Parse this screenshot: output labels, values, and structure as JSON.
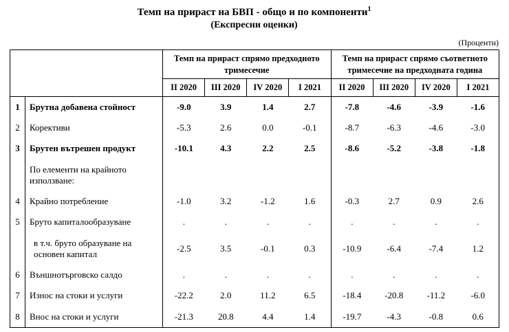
{
  "page": {
    "title": "Темп на прираст на БВП - общо и по компоненти",
    "title_superscript": "1",
    "subtitle": "(Експресни оценки)",
    "units_note": "(Проценти)"
  },
  "table": {
    "group_headers": [
      "Темп на прираст спрямо предходното тримесечие",
      "Темп на прираст спрямо съответното тримесечие на предходната година"
    ],
    "quarter_headers": [
      "II 2020",
      "III 2020",
      "IV 2020",
      "I 2021"
    ],
    "rows": [
      {
        "num": "1",
        "label": "Брутна добавена стойност",
        "bold": true,
        "indent": false,
        "values": [
          "-9.0",
          "3.9",
          "1.4",
          "2.7",
          "-7.8",
          "-4.6",
          "-3.9",
          "-1.6"
        ]
      },
      {
        "num": "2",
        "label": "Корективи",
        "bold": false,
        "indent": false,
        "values": [
          "-5.3",
          "2.6",
          "0.0",
          "-0.1",
          "-8.7",
          "-6.3",
          "-4.6",
          "-3.0"
        ]
      },
      {
        "num": "3",
        "label": "Брутен вътрешен продукт",
        "bold": true,
        "indent": false,
        "values": [
          "-10.1",
          "4.3",
          "2.2",
          "2.5",
          "-8.6",
          "-5.2",
          "-3.8",
          "-1.8"
        ]
      },
      {
        "num": "",
        "label": "По елементи на крайното използване:",
        "bold": false,
        "indent": false,
        "values": [
          "",
          "",
          "",
          "",
          "",
          "",
          "",
          ""
        ]
      },
      {
        "num": "4",
        "label": "Крайно потребление",
        "bold": false,
        "indent": false,
        "values": [
          "-1.0",
          "3.2",
          "-1.2",
          "1.6",
          "-0.3",
          "2.7",
          "0.9",
          "2.6"
        ]
      },
      {
        "num": "5",
        "label": "Бруто капиталообразуване",
        "bold": false,
        "indent": false,
        "values": [
          ".",
          ".",
          ".",
          ".",
          ".",
          ".",
          ".",
          "."
        ]
      },
      {
        "num": "",
        "label": "в т.ч. бруто образуване на основен капитал",
        "bold": false,
        "indent": true,
        "values": [
          "-2.5",
          "3.5",
          "-0.1",
          "0.3",
          "-10.9",
          "-6.4",
          "-7.4",
          "1.2"
        ]
      },
      {
        "num": "6",
        "label": "Външнотърговско салдо",
        "bold": false,
        "indent": false,
        "values": [
          ".",
          ".",
          ".",
          ".",
          ".",
          ".",
          ".",
          "."
        ]
      },
      {
        "num": "7",
        "label": "Износ на стоки и услуги",
        "bold": false,
        "indent": false,
        "values": [
          "-22.2",
          "2.0",
          "11.2",
          "6.5",
          "-18.4",
          "-20.8",
          "-11.2",
          "-6.0"
        ]
      },
      {
        "num": "8",
        "label": "Внос на стоки и услуги",
        "bold": false,
        "indent": false,
        "values": [
          "-21.3",
          "20.8",
          "4.4",
          "1.4",
          "-19.7",
          "-4.3",
          "-0.8",
          "0.6"
        ]
      }
    ]
  }
}
